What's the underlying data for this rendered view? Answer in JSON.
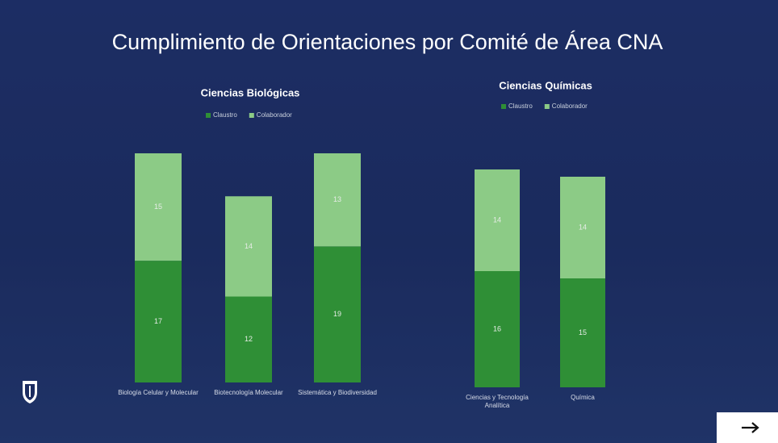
{
  "title": "Cumplimiento de Orientaciones por Comité de Área CNA",
  "chart_data": [
    {
      "type": "stacked-bar",
      "title": "Ciencias Biológicas",
      "categories": [
        "Biología Celular y Molecular",
        "Biotecnología Molecular",
        "Sistemática y Biodiversidad"
      ],
      "series": [
        {
          "name": "Claustro",
          "color": "#2f8f36",
          "values": [
            17,
            12,
            19
          ]
        },
        {
          "name": "Colaborador",
          "color": "#8ccb86",
          "values": [
            15,
            14,
            13
          ]
        }
      ],
      "legend": "top"
    },
    {
      "type": "stacked-bar",
      "title": "Ciencias Químicas",
      "categories": [
        "Ciencias y Tecnología Analítica",
        "Química"
      ],
      "series": [
        {
          "name": "Claustro",
          "color": "#2f8f36",
          "values": [
            16,
            15
          ]
        },
        {
          "name": "Colaborador",
          "color": "#8ccb86",
          "values": [
            14,
            14
          ]
        }
      ],
      "legend": "top"
    }
  ]
}
